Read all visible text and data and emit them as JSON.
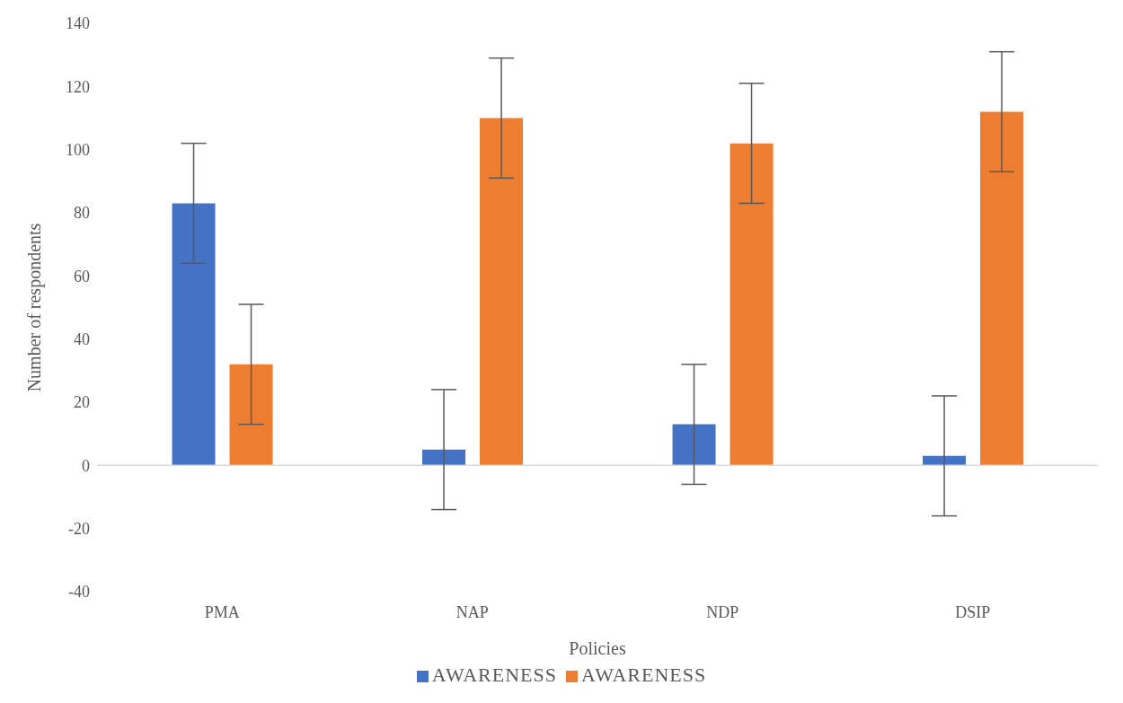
{
  "chart_data": {
    "type": "bar",
    "xlabel": "Policies",
    "ylabel": "Number of respondents",
    "categories": [
      "PMA",
      "NAP",
      "NDP",
      "DSIP"
    ],
    "series": [
      {
        "name": "AWARENESS",
        "color": "#4472c4",
        "values": [
          83,
          5,
          13,
          3
        ],
        "errors": [
          19,
          19,
          19,
          19
        ]
      },
      {
        "name": "AWARENESS",
        "color": "#ed7d31",
        "values": [
          32,
          110,
          102,
          112
        ],
        "errors": [
          19,
          19,
          19,
          19
        ]
      }
    ],
    "ylim": [
      -40,
      140
    ],
    "yticks": [
      -40,
      -20,
      0,
      20,
      40,
      60,
      80,
      100,
      120,
      140
    ],
    "ref_lines": [
      {
        "axis": "y",
        "value": 0,
        "color": "#d9d9d9"
      }
    ],
    "legend": "bottom"
  }
}
